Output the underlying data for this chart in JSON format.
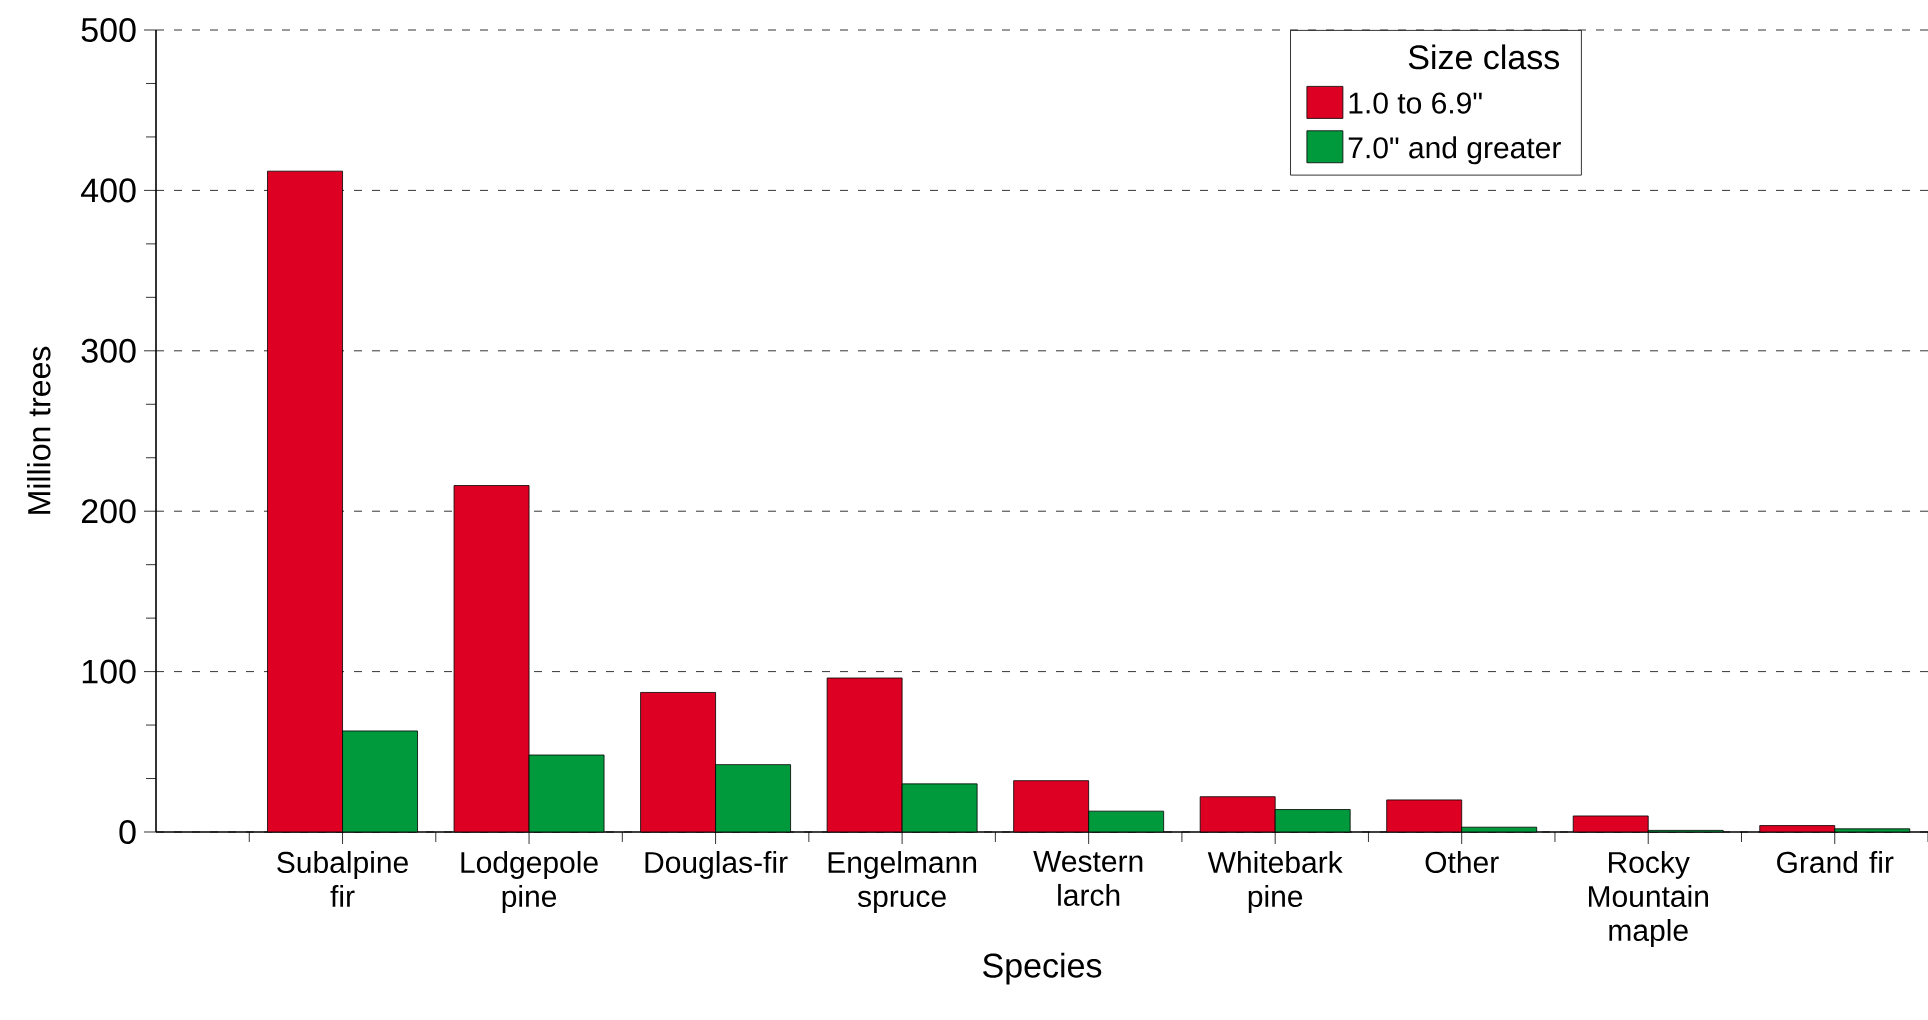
{
  "chart_data": {
    "type": "bar",
    "xlabel": "Species",
    "ylabel": "Million trees",
    "legend_title": "Size class",
    "categories": [
      "Subalpine fir",
      "Lodgepole pine",
      "Douglas-fir",
      "Engelmann spruce",
      "Western larch",
      "Whitebark pine",
      "Other",
      "Rocky Mountain maple",
      "Grand fir"
    ],
    "series": [
      {
        "name": "1.0 to 6.9\"",
        "color": "#dd0022",
        "values": [
          412,
          216,
          87,
          96,
          32,
          22,
          20,
          10,
          4
        ]
      },
      {
        "name": "7.0\" and greater",
        "color": "#009a3d",
        "values": [
          63,
          48,
          42,
          30,
          13,
          14,
          3,
          1,
          2
        ]
      }
    ],
    "ylim": [
      0,
      500
    ],
    "yticks": [
      0,
      100,
      200,
      300,
      400,
      500
    ],
    "grid": "y",
    "legend": "top right"
  }
}
